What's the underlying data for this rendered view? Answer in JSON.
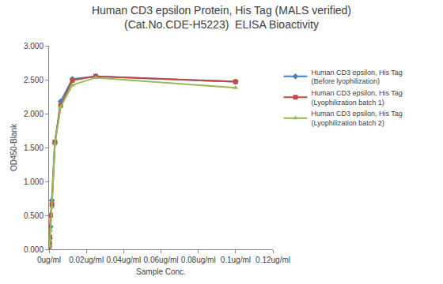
{
  "chart_data": {
    "type": "line",
    "title": "Human CD3 epsilon Protein, His Tag (MALS verified)\n(Cat.No.CDE-H5223)  ELISA Bioactivity",
    "x_label": "Sample Conc.",
    "y_label": "OD450-Blank",
    "x": [
      0.1,
      0.025,
      0.0125,
      0.00625,
      0.003125,
      0.0015625,
      0.00078,
      0.00039,
      0.000195,
      9.77e-05
    ],
    "series": [
      {
        "name": "Human CD3 epsilon, His Tag (Before lyophilization)",
        "color": "#4a7ebb",
        "marker": "diamond",
        "line_style": "solid",
        "values": [
          2.47,
          2.55,
          2.51,
          2.18,
          1.57,
          0.72,
          0.33,
          0.16,
          0.08,
          0.04
        ]
      },
      {
        "name": "Human CD3 epsilon, His Tag (Lyophilization batch 1)",
        "color": "#be4b48",
        "marker": "square",
        "line_style": "solid",
        "values": [
          2.47,
          2.55,
          2.49,
          2.12,
          1.58,
          0.66,
          0.5,
          0.18,
          0.09,
          0.04
        ]
      },
      {
        "name": "Human CD3 epsilon, His Tag (Lyophilization batch 2)",
        "color": "#98b954",
        "marker": "triangle-up",
        "line_style": "solid",
        "values": [
          2.38,
          2.53,
          2.42,
          2.1,
          1.55,
          0.62,
          0.28,
          0.14,
          0.07,
          0.04
        ]
      }
    ],
    "xlim": [
      0,
      0.12
    ],
    "xticks": [
      {
        "value": 0,
        "label": "0ug/ml"
      },
      {
        "value": 0.02,
        "label": "0.02ug/ml"
      },
      {
        "value": 0.04,
        "label": "0.04ug/ml"
      },
      {
        "value": 0.06,
        "label": "0.06ug/ml"
      },
      {
        "value": 0.08,
        "label": "0.08ug/ml"
      },
      {
        "value": 0.1,
        "label": "0.1ug/ml"
      },
      {
        "value": 0.12,
        "label": "0.12ug/ml"
      }
    ],
    "ylim": [
      0,
      3
    ],
    "yticks": [
      {
        "value": 0,
        "label": "0.000"
      },
      {
        "value": 0.5,
        "label": "0.500"
      },
      {
        "value": 1,
        "label": "1.000"
      },
      {
        "value": 1.5,
        "label": "1.500"
      },
      {
        "value": 2,
        "label": "2.000"
      },
      {
        "value": 2.5,
        "label": "2.500"
      },
      {
        "value": 3,
        "label": "3.000"
      }
    ],
    "grid": false,
    "legend": "right"
  }
}
